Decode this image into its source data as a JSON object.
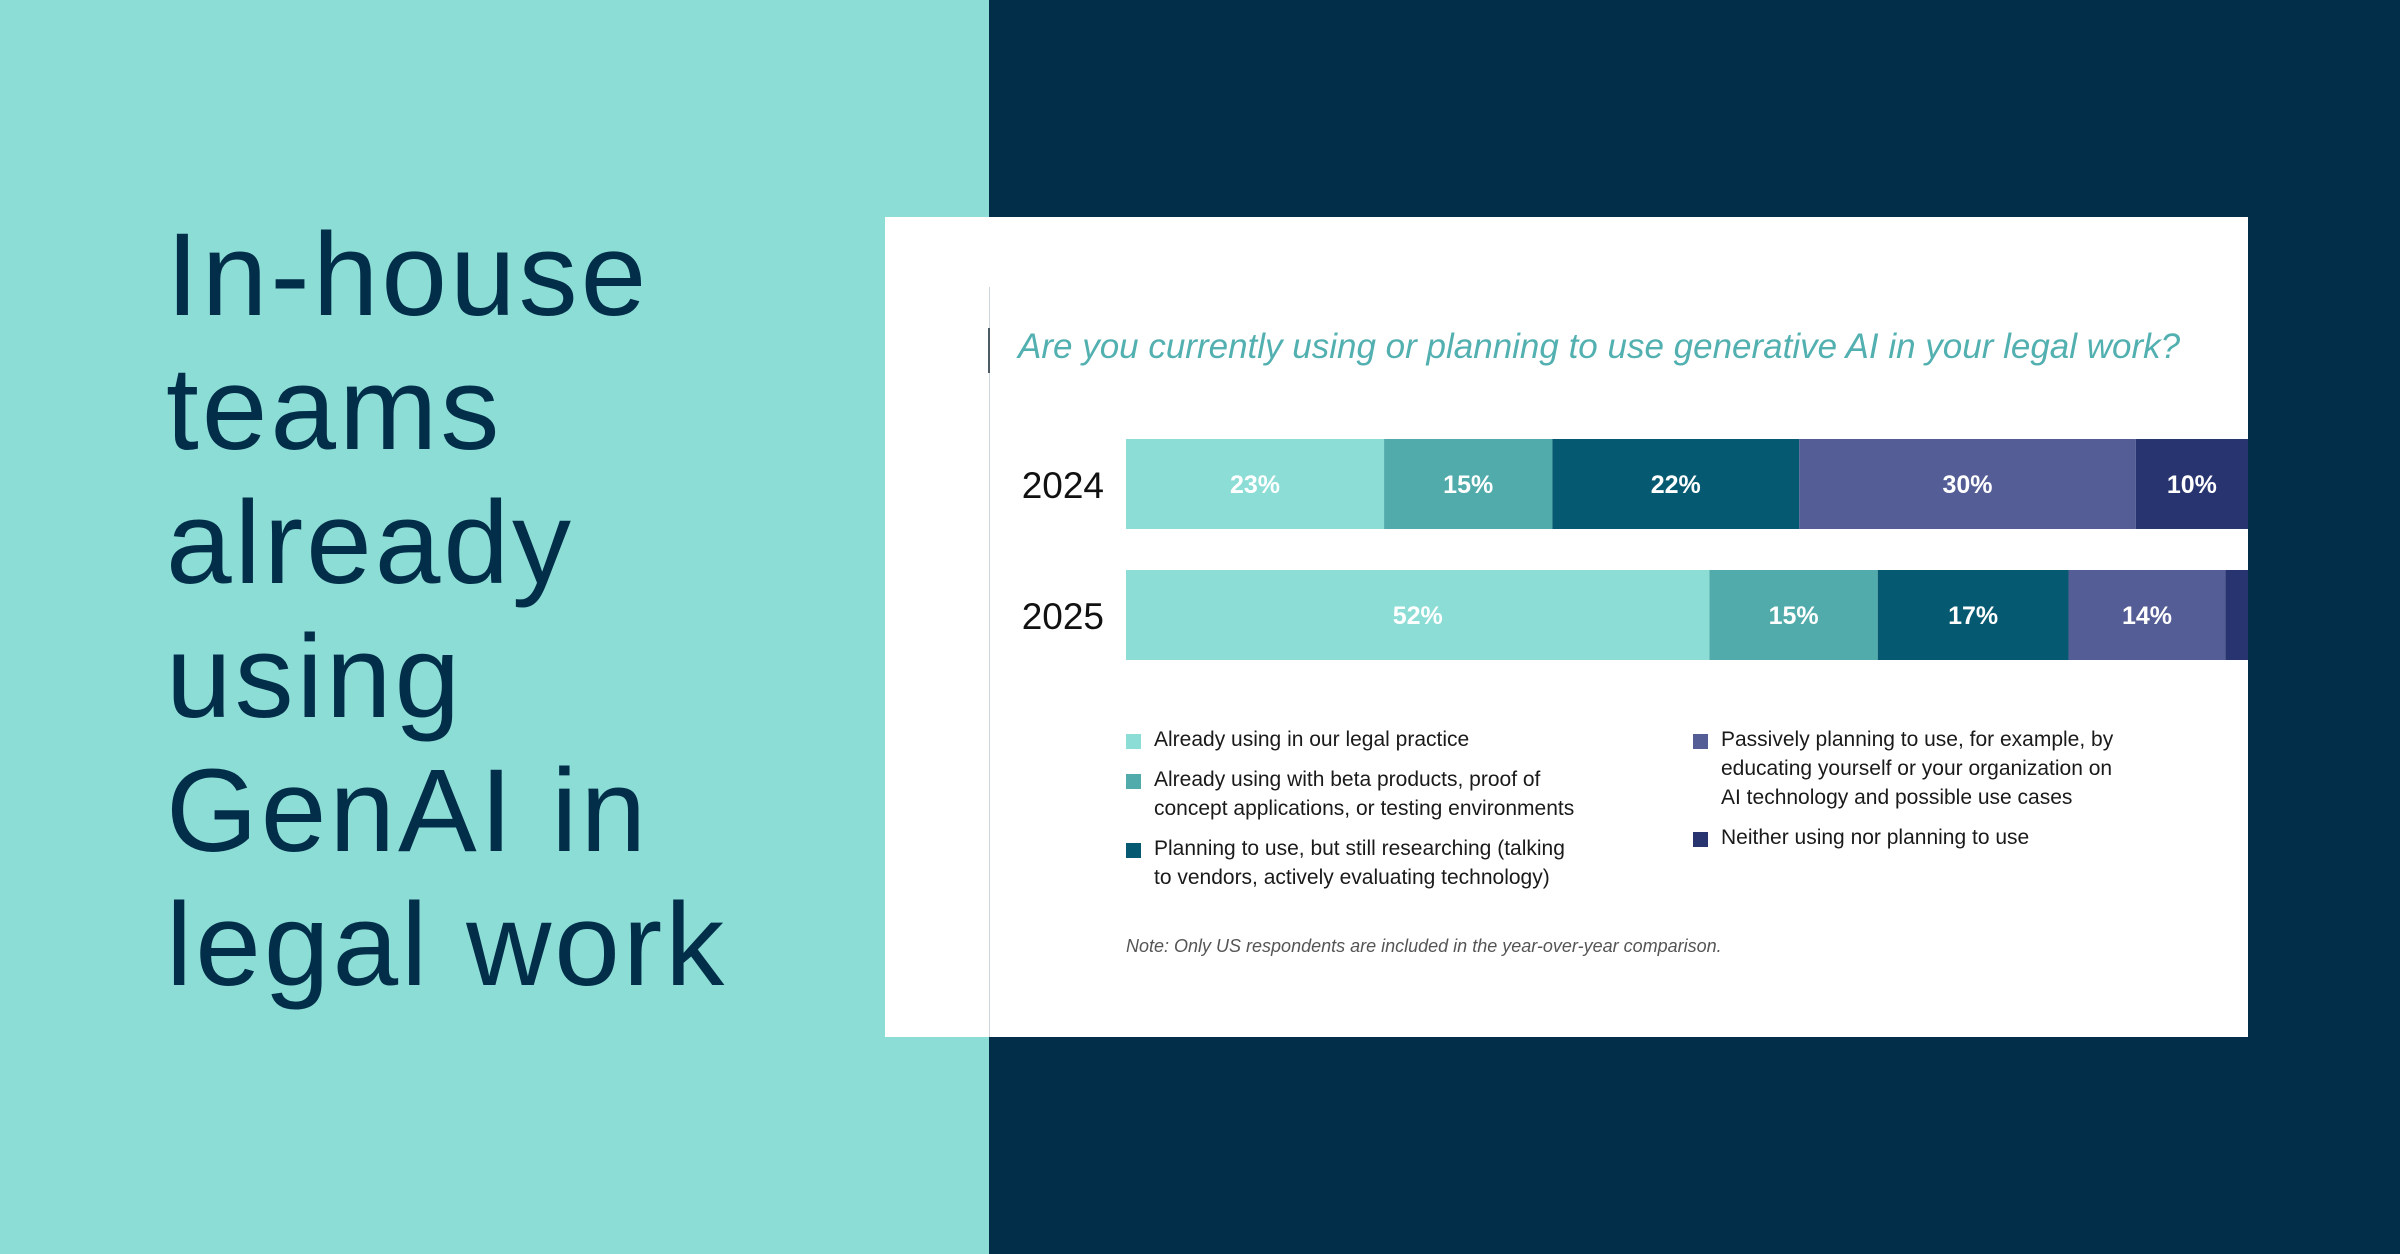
{
  "headline": {
    "lines": [
      "In-house",
      "teams",
      "already",
      "using",
      "GenAI in",
      "legal work"
    ]
  },
  "colors": {
    "left_background": "#8cddd6",
    "right_background": "#022e49",
    "headline_text": "#022e49",
    "question_text": "#52b0b0"
  },
  "chart_data": {
    "type": "bar",
    "orientation": "horizontal",
    "stacked": true,
    "title": "Are you currently using or planning to use generative AI in your legal work?",
    "categories": [
      "2024",
      "2025"
    ],
    "xlim": [
      0,
      100
    ],
    "grid": false,
    "legend_placement": "bottom",
    "series": [
      {
        "name": "Already using in our legal practice",
        "color": "#8cddd6",
        "values": [
          23,
          52
        ],
        "labels": [
          "23%",
          "52%"
        ],
        "label_color": "#ffffff"
      },
      {
        "name": "Already using with beta products, proof of concept applications, or testing environments",
        "color": "#52abab",
        "values": [
          15,
          15
        ],
        "labels": [
          "15%",
          "15%"
        ],
        "label_color": "#ffffff"
      },
      {
        "name": "Planning to use, but still researching (talking to vendors, actively evaluating technology)",
        "color": "#055a72",
        "values": [
          22,
          17
        ],
        "labels": [
          "22%",
          "17%"
        ],
        "label_color": "#ffffff"
      },
      {
        "name": "Passively planning to use, for example, by educating yourself or your organization on AI technology and possible use cases",
        "color": "#545d95",
        "values": [
          30,
          14
        ],
        "labels": [
          "30%",
          "14%"
        ],
        "label_color": "#ffffff"
      },
      {
        "name": "Neither using nor planning to use",
        "color": "#27346f",
        "values": [
          10,
          2
        ],
        "labels": [
          "10%",
          "2%"
        ],
        "label_color": "#ffffff",
        "outside_label_color": "#9a9fb6"
      }
    ],
    "note": "Note: Only US respondents are included in the year-over-year comparison."
  },
  "legend": {
    "items": [
      {
        "label": "Already using in our legal practice",
        "color": "#8cddd6"
      },
      {
        "label": "Already using with beta products, proof of\nconcept applications, or testing environments",
        "color": "#52abab"
      },
      {
        "label": "Planning to use, but still researching (talking\nto vendors, actively evaluating technology)",
        "color": "#055a72"
      },
      {
        "label": "Passively planning to use, for example, by\neducating yourself or your organization on\nAI technology and possible use cases",
        "color": "#545d95"
      },
      {
        "label": "Neither using nor planning to use",
        "color": "#27346f"
      }
    ]
  }
}
